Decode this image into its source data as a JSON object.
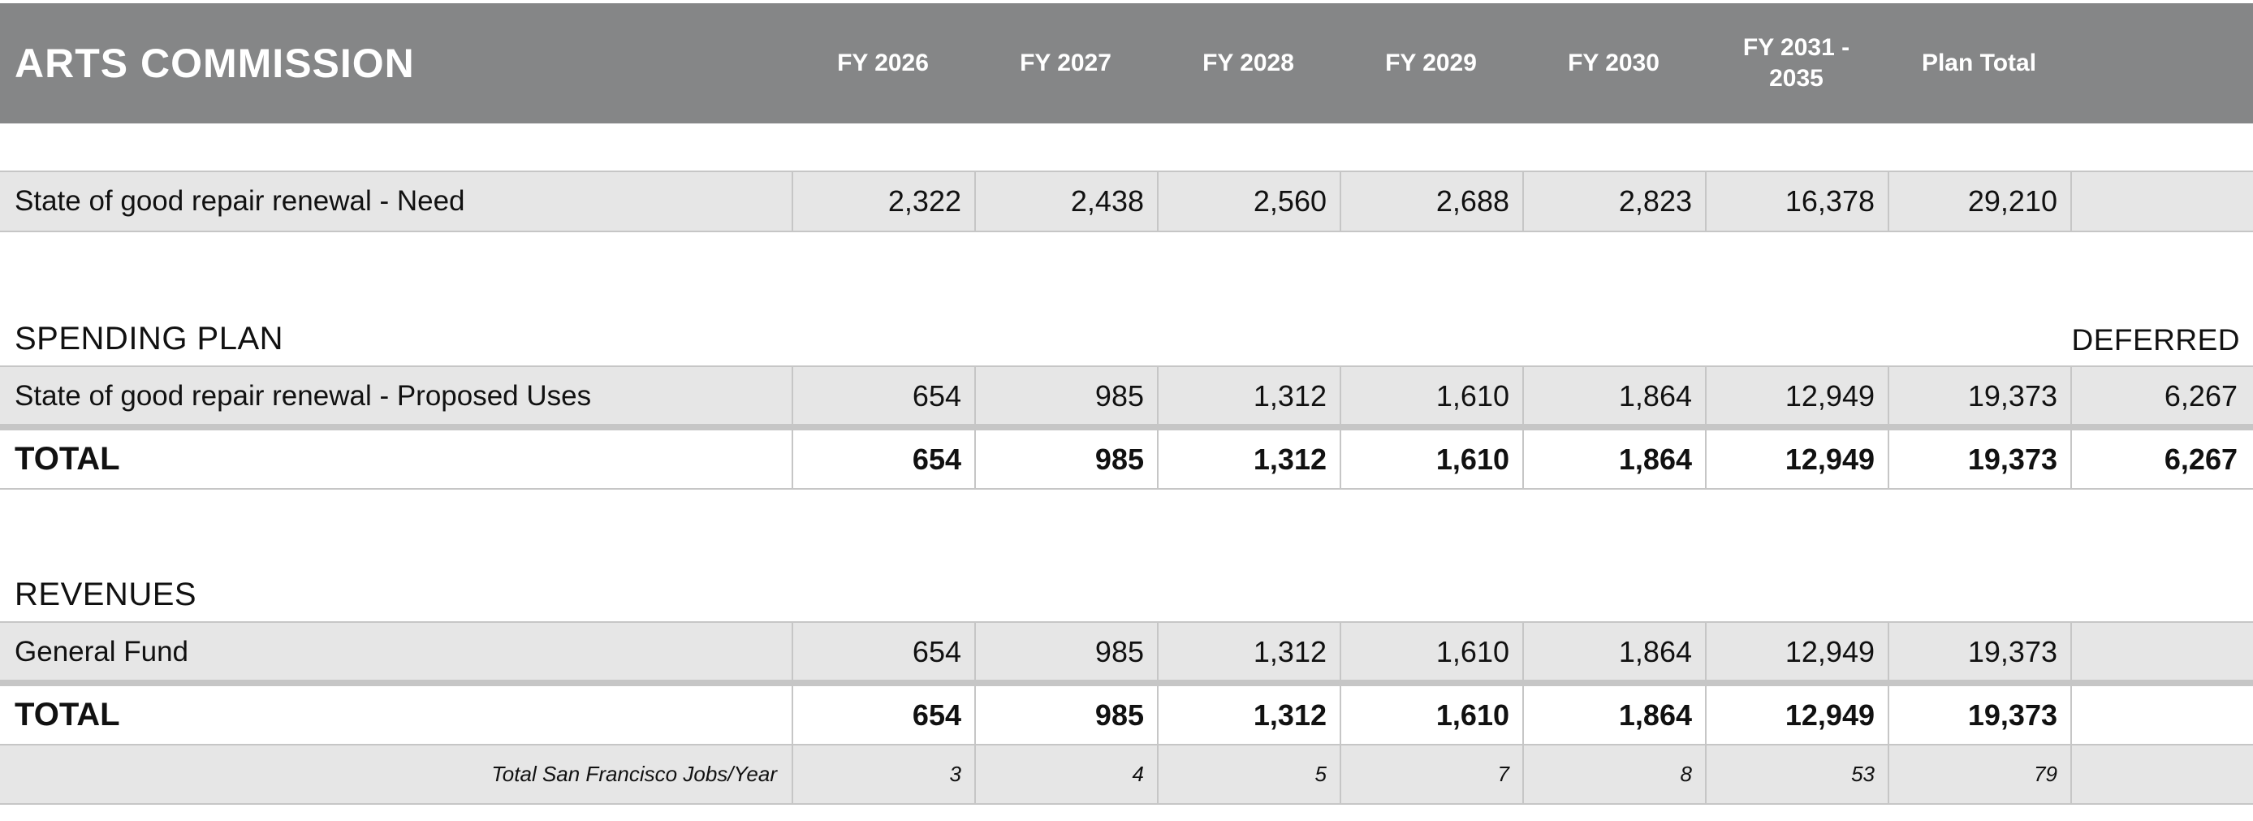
{
  "header": {
    "title": "ARTS COMMISSION",
    "columns": [
      "FY 2026",
      "FY 2027",
      "FY 2028",
      "FY 2029",
      "FY 2030",
      "FY 2031 - 2035",
      "Plan Total"
    ]
  },
  "need_row": {
    "label": "State of good repair renewal - Need",
    "values": [
      "2,322",
      "2,438",
      "2,560",
      "2,688",
      "2,823",
      "16,378",
      "29,210",
      ""
    ]
  },
  "spending_plan": {
    "heading": "SPENDING PLAN",
    "deferred_label": "DEFERRED",
    "uses_row": {
      "label": "State of good repair renewal - Proposed Uses",
      "values": [
        "654",
        "985",
        "1,312",
        "1,610",
        "1,864",
        "12,949",
        "19,373",
        "6,267"
      ]
    },
    "total_row": {
      "label": "TOTAL",
      "values": [
        "654",
        "985",
        "1,312",
        "1,610",
        "1,864",
        "12,949",
        "19,373",
        "6,267"
      ]
    }
  },
  "revenues": {
    "heading": "REVENUES",
    "general_fund_row": {
      "label": "General Fund",
      "values": [
        "654",
        "985",
        "1,312",
        "1,610",
        "1,864",
        "12,949",
        "19,373",
        ""
      ]
    },
    "total_row": {
      "label": "TOTAL",
      "values": [
        "654",
        "985",
        "1,312",
        "1,610",
        "1,864",
        "12,949",
        "19,373",
        ""
      ]
    },
    "jobs_row": {
      "label": "Total San Francisco Jobs/Year",
      "values": [
        "3",
        "4",
        "5",
        "7",
        "8",
        "53",
        "79",
        ""
      ]
    }
  },
  "colors": {
    "header_bg": "#858687",
    "row_bg": "#e6e6e6",
    "rule": "#c6c6c6"
  }
}
